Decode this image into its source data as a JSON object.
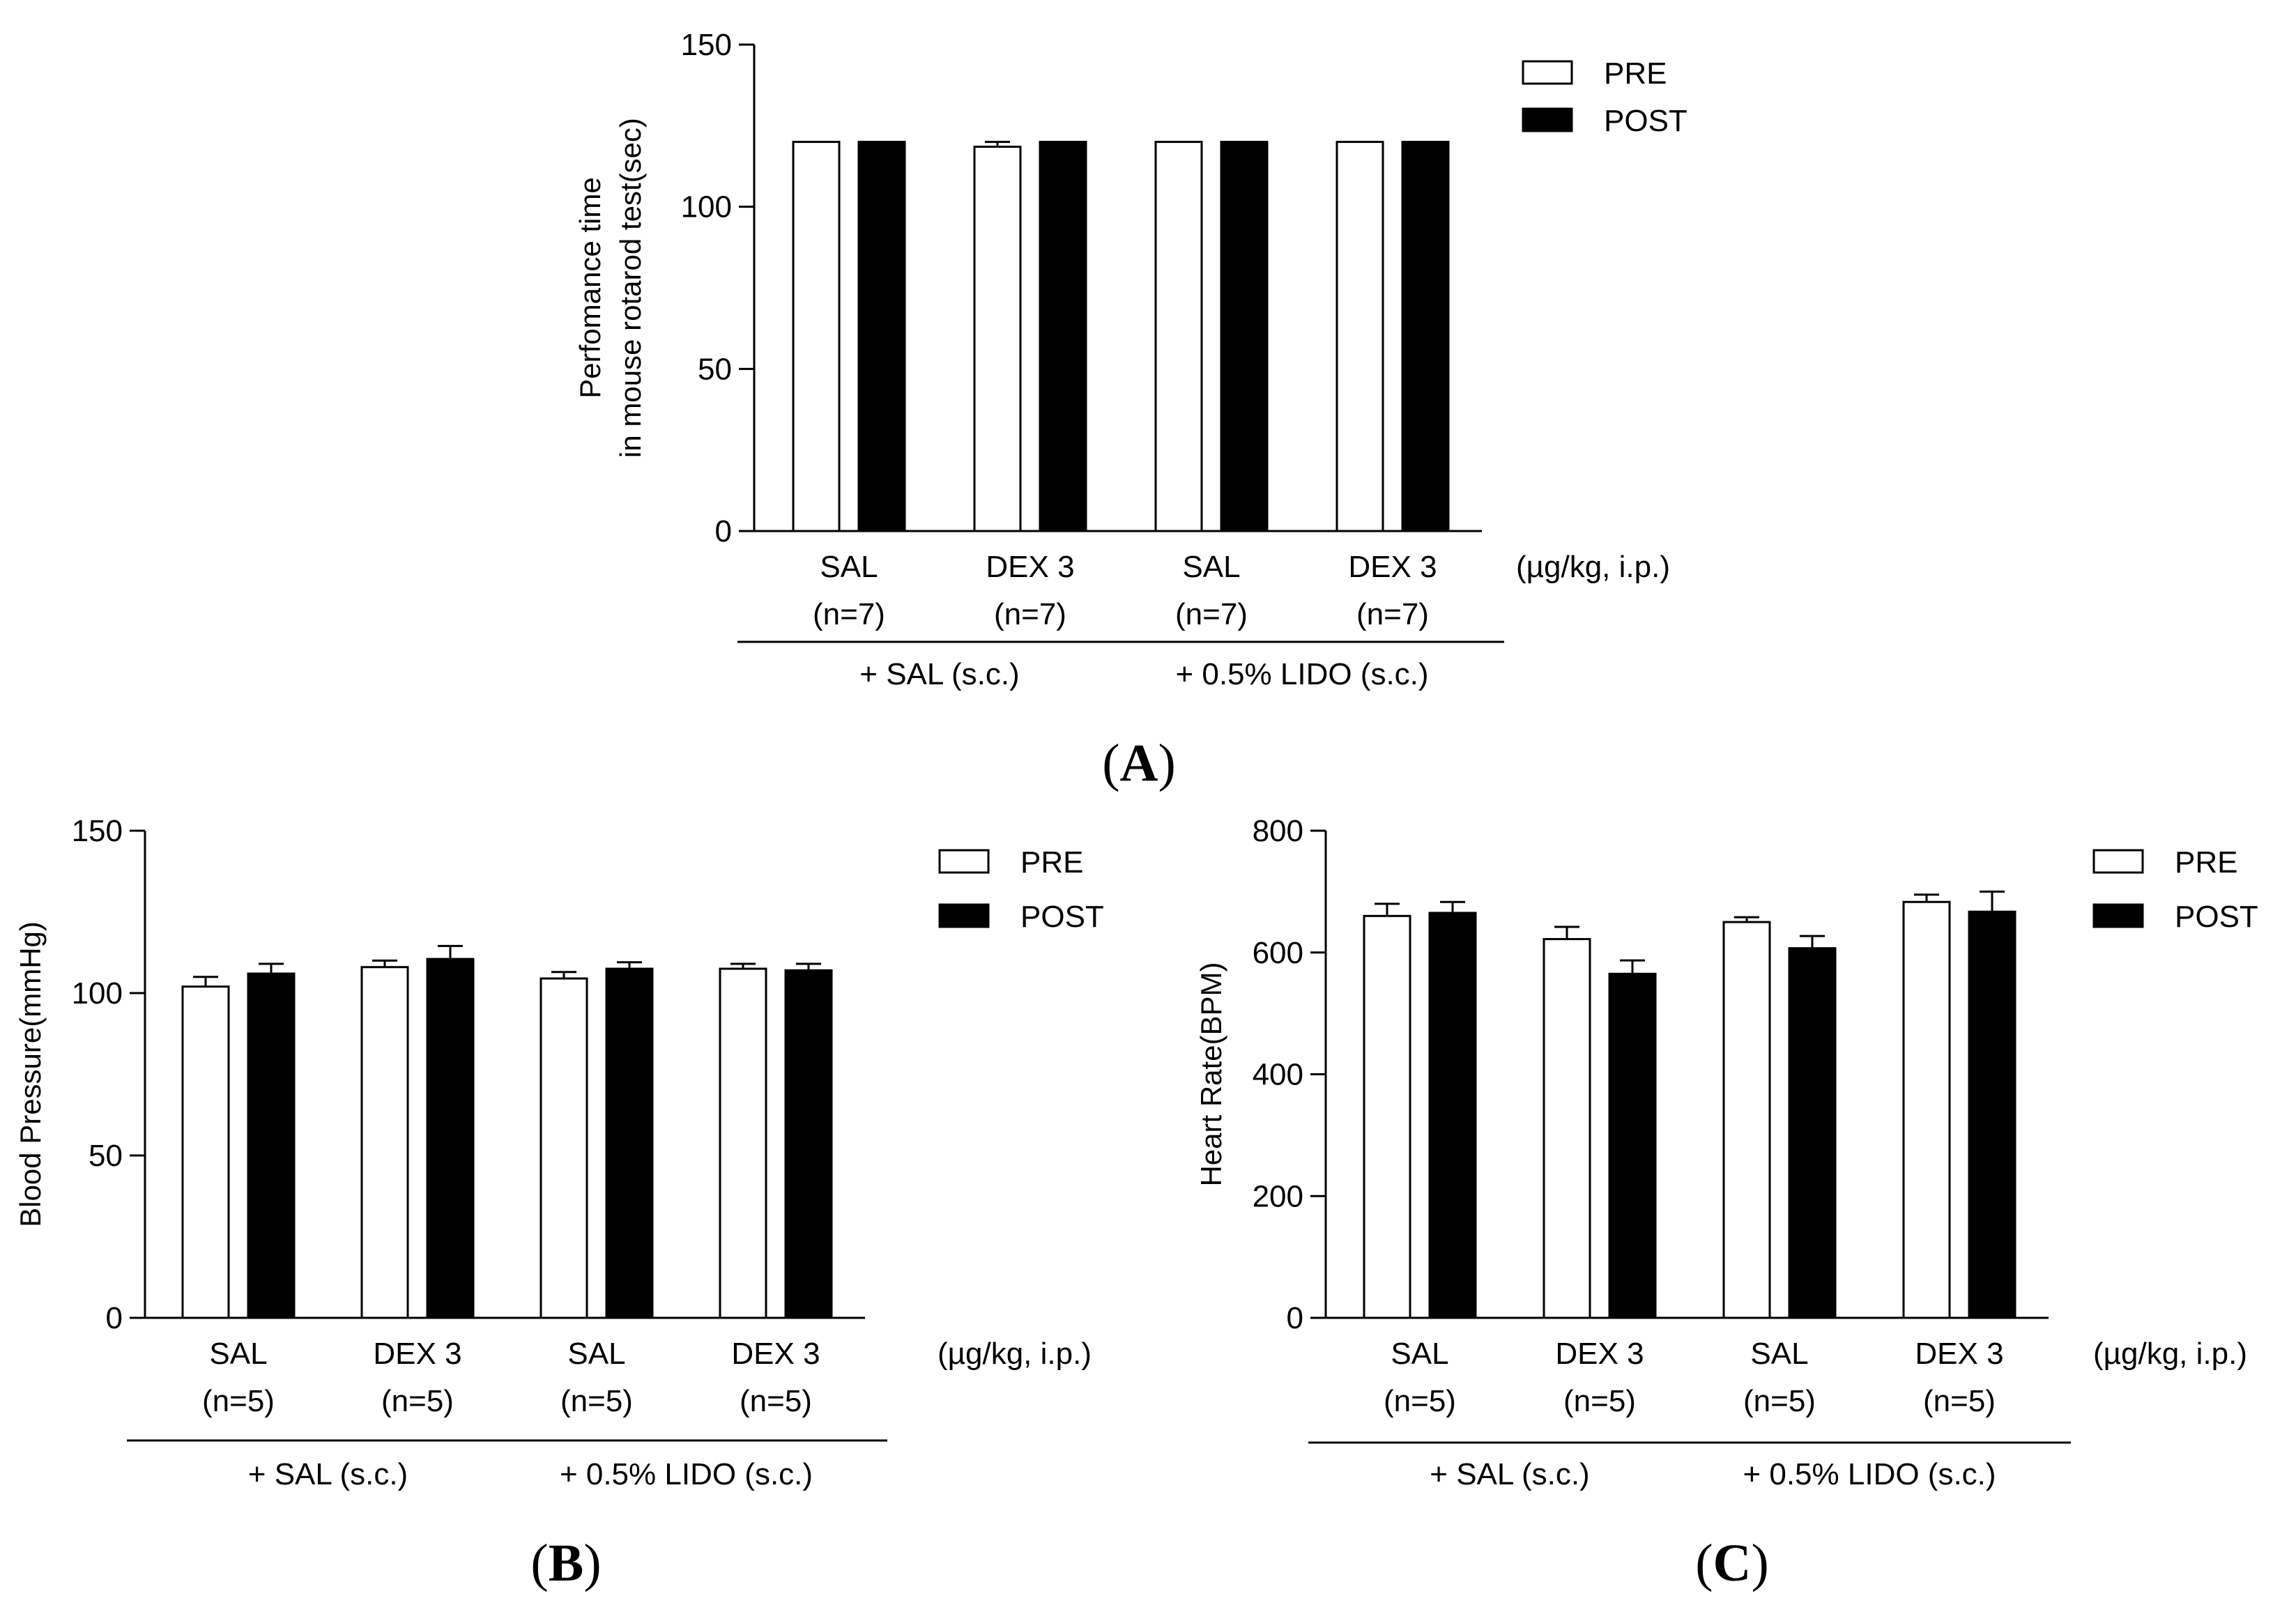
{
  "chart_data": [
    {
      "id": "A",
      "type": "bar",
      "panel_label": "A",
      "ylabel_lines": [
        "Perfomance time",
        "in mouse rotarod test(sec)"
      ],
      "ylim": [
        0,
        150
      ],
      "yticks": [
        0,
        50,
        100,
        150
      ],
      "categories": [
        {
          "name": "SAL",
          "n": "(n=7)"
        },
        {
          "name": "DEX 3",
          "n": "(n=7)"
        },
        {
          "name": "SAL",
          "n": "(n=7)"
        },
        {
          "name": "DEX 3",
          "n": "(n=7)"
        }
      ],
      "unit_label": "(µg/kg, i.p.)",
      "groups": [
        "+ SAL (s.c.)",
        "+ 0.5% LIDO (s.c.)"
      ],
      "series": [
        {
          "name": "PRE",
          "fill": "#ffffff",
          "values": [
            120,
            118.5,
            120,
            120
          ],
          "errors": [
            0,
            1.5,
            0,
            0
          ]
        },
        {
          "name": "POST",
          "fill": "#000000",
          "values": [
            120,
            120,
            120,
            120
          ],
          "errors": [
            0,
            0,
            0,
            0
          ]
        }
      ]
    },
    {
      "id": "B",
      "type": "bar",
      "panel_label": "B",
      "ylabel_lines": [
        "Blood Pressure(mmHg)"
      ],
      "ylim": [
        0,
        150
      ],
      "yticks": [
        0,
        50,
        100,
        150
      ],
      "categories": [
        {
          "name": "SAL",
          "n": "(n=5)"
        },
        {
          "name": "DEX 3",
          "n": "(n=5)"
        },
        {
          "name": "SAL",
          "n": "(n=5)"
        },
        {
          "name": "DEX 3",
          "n": "(n=5)"
        }
      ],
      "unit_label": "(µg/kg, i.p.)",
      "groups": [
        "+ SAL (s.c.)",
        "+ 0.5% LIDO (s.c.)"
      ],
      "series": [
        {
          "name": "PRE",
          "fill": "#ffffff",
          "values": [
            102,
            108,
            104.5,
            107.5
          ],
          "errors": [
            3,
            2,
            2,
            1.5
          ]
        },
        {
          "name": "POST",
          "fill": "#000000",
          "values": [
            106,
            110.5,
            107.5,
            107
          ],
          "errors": [
            3,
            4,
            2,
            2
          ]
        }
      ]
    },
    {
      "id": "C",
      "type": "bar",
      "panel_label": "C",
      "ylabel_lines": [
        "Heart Rate(BPM)"
      ],
      "ylim": [
        0,
        800
      ],
      "yticks": [
        0,
        200,
        400,
        600,
        800
      ],
      "categories": [
        {
          "name": "SAL",
          "n": "(n=5)"
        },
        {
          "name": "DEX 3",
          "n": "(n=5)"
        },
        {
          "name": "SAL",
          "n": "(n=5)"
        },
        {
          "name": "DEX 3",
          "n": "(n=5)"
        }
      ],
      "unit_label": "(µg/kg, i.p.)",
      "groups": [
        "+ SAL (s.c.)",
        "+ 0.5% LIDO (s.c.)"
      ],
      "series": [
        {
          "name": "PRE",
          "fill": "#ffffff",
          "values": [
            660,
            622,
            650,
            683
          ],
          "errors": [
            20,
            20,
            8,
            12
          ]
        },
        {
          "name": "POST",
          "fill": "#000000",
          "values": [
            665,
            565,
            607,
            667
          ],
          "errors": [
            18,
            22,
            20,
            33
          ]
        }
      ]
    }
  ]
}
